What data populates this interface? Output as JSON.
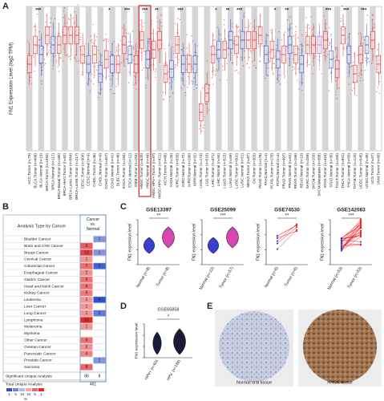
{
  "panel_a": {
    "label": "A",
    "ylabel": "FN1 Expression Level (log2 TPM)",
    "ylim": [
      0,
      15
    ],
    "categories": [
      "ACC.Tumor (n=79)",
      "BLCA.Tumor (n=408)",
      "BLCA.Normal (n=19)",
      "BRCA.Tumor (n=1093)",
      "BRCA.Normal (n=112)",
      "BRCA-Basal.Tumor (n=190)",
      "BRCA-Her2.Tumor (n=82)",
      "BRCA-LumA.Tumor (n=564)",
      "BRCA-LumB.Tumor (n=217)",
      "CESC.Tumor (n=304)",
      "CESC.Normal (n=3)",
      "CHOL.Tumor (n=36)",
      "CHOL.Normal (n=9)",
      "COAD.Tumor (n=457)",
      "COAD.Normal (n=41)",
      "DLBC.Tumor (n=48)",
      "ESCA.Tumor (n=184)",
      "ESCA.Normal (n=11)",
      "GBM.Tumor (n=153)",
      "HNSC.Tumor (n=520)",
      "HNSC.Normal (n=44)",
      "HNSC-HPV+.Tumor (n=97)",
      "HNSC-HPV-.Tumor (n=421)",
      "KICH.Tumor (n=66)",
      "KICH.Normal (n=25)",
      "KIRC.Tumor (n=533)",
      "KIRC.Normal (n=72)",
      "KIRP.Tumor (n=290)",
      "KIRP.Normal (n=32)",
      "LAML.Tumor (n=173)",
      "LGG.Tumor (n=516)",
      "LIHC.Tumor (n=371)",
      "LIHC.Normal (n=50)",
      "LUAD.Tumor (n=515)",
      "LUAD.Normal (n=59)",
      "LUSC.Tumor (n=501)",
      "LUSC.Normal (n=51)",
      "MESO.Tumor (n=87)",
      "OV.Tumor (n=303)",
      "PAAD.Tumor (n=178)",
      "PAAD.Normal (n=4)",
      "PCPG.Tumor (n=179)",
      "PCPG.Normal (n=3)",
      "PRAD.Tumor (n=497)",
      "PRAD.Normal (n=52)",
      "READ.Tumor (n=166)",
      "READ.Normal (n=10)",
      "SARC.Tumor (n=259)",
      "SKCM.Tumor (n=103)",
      "SKCM.Metastasis (n=368)",
      "STAD.Tumor (n=415)",
      "STAD.Normal (n=35)",
      "TGCT.Tumor (n=150)",
      "THCA.Tumor (n=501)",
      "THCA.Normal (n=59)",
      "THYM.Tumor (n=120)",
      "UCEC.Tumor (n=545)",
      "UCEC.Normal (n=35)",
      "UCS.Tumor (n=57)",
      "UVM.Tumor (n=80)"
    ],
    "medians": [
      9,
      11,
      10,
      12,
      11,
      11,
      12,
      12,
      12,
      10,
      9,
      10,
      8,
      9.5,
      9,
      9,
      11,
      10,
      9,
      11.5,
      9.5,
      10.5,
      11.5,
      8,
      8.5,
      11,
      9,
      9,
      9,
      4,
      6,
      10,
      10.5,
      10.5,
      11.5,
      11,
      11.5,
      11.5,
      11.5,
      12,
      10,
      10.5,
      9.5,
      10,
      11,
      10,
      9,
      11,
      11,
      11,
      11.5,
      9.5,
      8.5,
      12,
      10,
      8,
      10,
      11,
      11.5,
      9
    ],
    "colors": [
      "#e8282b",
      "#e8282b",
      "#3b4cc0",
      "#e8282b",
      "#3b4cc0",
      "#e8282b",
      "#e8282b",
      "#e8282b",
      "#e8282b",
      "#e8282b",
      "#3b4cc0",
      "#e8282b",
      "#3b4cc0",
      "#e8282b",
      "#3b4cc0",
      "#e8282b",
      "#e8282b",
      "#3b4cc0",
      "#e8282b",
      "#e8282b",
      "#3b4cc0",
      "#e8282b",
      "#e8282b",
      "#e8282b",
      "#3b4cc0",
      "#e8282b",
      "#3b4cc0",
      "#e8282b",
      "#3b4cc0",
      "#e8282b",
      "#e8282b",
      "#e8282b",
      "#3b4cc0",
      "#e8282b",
      "#3b4cc0",
      "#e8282b",
      "#3b4cc0",
      "#e8282b",
      "#e8282b",
      "#e8282b",
      "#3b4cc0",
      "#e8282b",
      "#3b4cc0",
      "#e8282b",
      "#3b4cc0",
      "#e8282b",
      "#3b4cc0",
      "#e8282b",
      "#e8282b",
      "#9c5fd6",
      "#e8282b",
      "#3b4cc0",
      "#e8282b",
      "#e8282b",
      "#3b4cc0",
      "#e8282b",
      "#e8282b",
      "#3b4cc0",
      "#e8282b",
      "#e8282b"
    ],
    "significance": [
      null,
      "***",
      null,
      null,
      null,
      null,
      null,
      null,
      null,
      null,
      null,
      null,
      null,
      "*",
      null,
      null,
      "***",
      null,
      null,
      "***",
      null,
      "**",
      null,
      null,
      null,
      "***",
      null,
      null,
      null,
      null,
      null,
      "*",
      null,
      "**",
      null,
      "***",
      null,
      null,
      null,
      null,
      null,
      "*",
      null,
      "**",
      null,
      null,
      null,
      null,
      null,
      null,
      "***",
      null,
      null,
      "***",
      null,
      null,
      "***",
      null,
      null,
      null
    ]
  },
  "panel_b": {
    "label": "B",
    "header": "Analysis Type by Cancer",
    "column": "Cancer vs. Normal",
    "rows": [
      {
        "name": "Bladder Cancer",
        "up": null,
        "down": 1
      },
      {
        "name": "Brain and CNS Cancer",
        "up": 9,
        "down": null
      },
      {
        "name": "Breast Cancer",
        "up": 13,
        "down": 1
      },
      {
        "name": "Cervical Cancer",
        "up": 1,
        "down": null
      },
      {
        "name": "Colorectal Cancer",
        "up": 7,
        "down": 3
      },
      {
        "name": "Esophageal Cancer",
        "up": 2,
        "down": null
      },
      {
        "name": "Gastric Cancer",
        "up": 6,
        "down": null
      },
      {
        "name": "Head and Neck Cancer",
        "up": 6,
        "down": null
      },
      {
        "name": "Kidney Cancer",
        "up": 5,
        "down": null
      },
      {
        "name": "Leukemia",
        "up": 1,
        "down": 4
      },
      {
        "name": "Liver Cancer",
        "up": 1,
        "down": null
      },
      {
        "name": "Lung Cancer",
        "up": 1,
        "down": 2
      },
      {
        "name": "Lymphoma",
        "up": 16,
        "down": null
      },
      {
        "name": "Melanoma",
        "up": 1,
        "down": null
      },
      {
        "name": "Myeloma",
        "up": null,
        "down": null
      },
      {
        "name": "Other Cancer",
        "up": 6,
        "down": null
      },
      {
        "name": "Ovarian Cancer",
        "up": 2,
        "down": null
      },
      {
        "name": "Pancreatic Cancer",
        "up": 4,
        "down": null
      },
      {
        "name": "Prostate Cancer",
        "up": null,
        "down": 1
      },
      {
        "name": "Sarcoma",
        "up": 8,
        "down": null
      }
    ],
    "significant": {
      "name": "Significant Unique Analysis",
      "up": 86,
      "down": 8
    },
    "total": {
      "name": "Total Unique Analysis",
      "value": 461
    },
    "legend": [
      1,
      5,
      10,
      10,
      5,
      1
    ],
    "legend_unit": "%"
  },
  "panel_c": {
    "label": "C",
    "ylabel": "FN1 expression level",
    "plots": [
      {
        "title": "GSE13397",
        "groups": [
          "Normal (n=8)",
          "Tumor (n=8)"
        ],
        "significance": "**",
        "style": "violin"
      },
      {
        "title": "GSE25099",
        "groups": [
          "Normal (n=22)",
          "Tumor (n=57)"
        ],
        "significance": "***",
        "style": "violin"
      },
      {
        "title": "GSE74530",
        "groups": [
          "Normal (n=6)",
          "Tumor (n=6)"
        ],
        "significance": "**",
        "style": "paired"
      },
      {
        "title": "GSE142083",
        "groups": [
          "Normal (n=53)",
          "Tumor (n=53)"
        ],
        "significance": "***",
        "style": "paired"
      }
    ]
  },
  "panel_d": {
    "label": "D",
    "title": "GSE65858",
    "ylabel": "FN1 expression level",
    "groups": [
      "HPV+ (n=60)",
      "HPV- (n=186)"
    ],
    "significance": "*"
  },
  "panel_e": {
    "label": "E",
    "captions": [
      "Normal oral tissue",
      "HNSC tissue"
    ]
  }
}
